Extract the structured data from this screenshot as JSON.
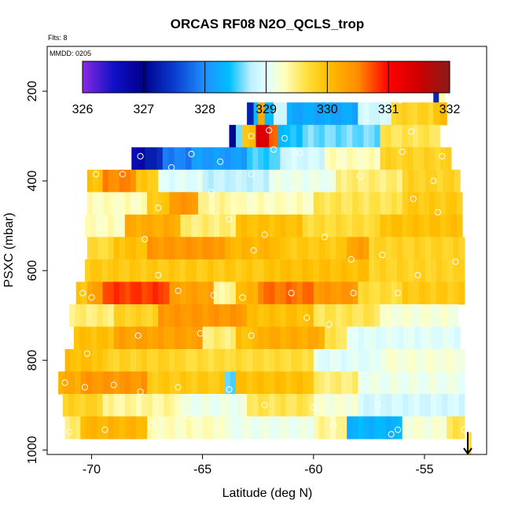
{
  "chart_data": {
    "type": "heatmap",
    "title": "ORCAS RF08 N2O_QCLS_trop",
    "subtitle": "Flts: 8",
    "inset_label": "MMDD: 0205",
    "xlabel": "Latitude (deg N)",
    "ylabel": "PSXC (mbar)",
    "xlim": [
      -72.0,
      -52.2
    ],
    "ylim": [
      1010,
      100
    ],
    "x_ticks": [
      -70,
      -65,
      -60,
      -55
    ],
    "x_tick_labels": [
      "-70",
      "-65",
      "-60",
      "-55"
    ],
    "y_ticks": [
      200,
      400,
      600,
      800,
      1000
    ],
    "y_tick_labels": [
      "200",
      "400",
      "600",
      "800",
      "1000"
    ],
    "colorbar": {
      "min": 326,
      "max": 332,
      "ticks": [
        326,
        327,
        328,
        329,
        330,
        331,
        332
      ],
      "tick_labels": [
        "326",
        "327",
        "328",
        "329",
        "330",
        "331",
        "332"
      ],
      "stops": [
        {
          "v": 326.0,
          "c": "#8a2be2"
        },
        {
          "v": 326.5,
          "c": "#1010c8"
        },
        {
          "v": 327.0,
          "c": "#00008b"
        },
        {
          "v": 327.5,
          "c": "#0a3cd0"
        },
        {
          "v": 328.0,
          "c": "#1e90ff"
        },
        {
          "v": 328.4,
          "c": "#00bfff"
        },
        {
          "v": 328.75,
          "c": "#bfefff"
        },
        {
          "v": 329.0,
          "c": "#e0ffff"
        },
        {
          "v": 329.3,
          "c": "#ffffc0"
        },
        {
          "v": 329.65,
          "c": "#ffe040"
        },
        {
          "v": 330.0,
          "c": "#ffc000"
        },
        {
          "v": 330.5,
          "c": "#ff8c00"
        },
        {
          "v": 331.0,
          "c": "#ff0000"
        },
        {
          "v": 331.5,
          "c": "#cd0000"
        },
        {
          "v": 332.0,
          "c": "#8b1a1a"
        }
      ]
    },
    "rows": [
      {
        "p": 200,
        "segments": [
          [
            -54.6,
            -54.35,
            327.3
          ],
          [
            -54.35,
            -54.1,
            329.3
          ]
        ]
      },
      {
        "p": 250,
        "segments": [
          [
            -63.0,
            -62.7,
            327.2
          ],
          [
            -62.7,
            -62.5,
            328.4
          ],
          [
            -62.5,
            -62.2,
            330.3
          ],
          [
            -62.2,
            -61.8,
            328.3
          ],
          [
            -61.8,
            -61.2,
            328.9
          ],
          [
            -61.2,
            -58.0,
            328.2
          ],
          [
            -58.0,
            -56.5,
            328.9
          ],
          [
            -56.5,
            -54.6,
            329.8
          ],
          [
            -54.6,
            -54.0,
            330.0
          ]
        ]
      },
      {
        "p": 300,
        "segments": [
          [
            -63.8,
            -63.5,
            327.0
          ],
          [
            -63.5,
            -63.2,
            328.6
          ],
          [
            -63.2,
            -62.6,
            330.0
          ],
          [
            -62.6,
            -62.0,
            331.4
          ],
          [
            -62.0,
            -61.6,
            330.6
          ],
          [
            -61.6,
            -60.5,
            328.4
          ],
          [
            -60.5,
            -57.0,
            328.6
          ],
          [
            -57.0,
            -54.3,
            329.6
          ]
        ]
      },
      {
        "p": 350,
        "segments": [
          [
            -68.2,
            -67.6,
            326.7
          ],
          [
            -67.6,
            -66.8,
            327.3
          ],
          [
            -66.8,
            -65.5,
            327.9
          ],
          [
            -65.5,
            -63.0,
            328.1
          ],
          [
            -63.0,
            -61.5,
            328.5
          ],
          [
            -61.5,
            -59.5,
            328.9
          ],
          [
            -59.5,
            -57.0,
            329.3
          ],
          [
            -57.0,
            -53.8,
            329.8
          ]
        ]
      },
      {
        "p": 400,
        "segments": [
          [
            -70.2,
            -69.5,
            330.0
          ],
          [
            -69.5,
            -68.0,
            330.5
          ],
          [
            -68.0,
            -67.0,
            329.9
          ],
          [
            -67.0,
            -65.0,
            329.0
          ],
          [
            -65.0,
            -62.0,
            328.8
          ],
          [
            -62.0,
            -59.0,
            329.1
          ],
          [
            -59.0,
            -56.0,
            329.5
          ],
          [
            -56.0,
            -53.4,
            329.8
          ]
        ]
      },
      {
        "p": 450,
        "segments": [
          [
            -70.2,
            -67.5,
            329.3
          ],
          [
            -67.5,
            -66.5,
            329.9
          ],
          [
            -66.5,
            -65.2,
            330.4
          ],
          [
            -65.2,
            -63.5,
            329.4
          ],
          [
            -63.5,
            -60.0,
            329.3
          ],
          [
            -60.0,
            -56.0,
            329.6
          ],
          [
            -56.0,
            -53.3,
            329.9
          ]
        ]
      },
      {
        "p": 500,
        "segments": [
          [
            -70.3,
            -68.5,
            329.3
          ],
          [
            -68.5,
            -66.0,
            330.2
          ],
          [
            -66.0,
            -63.5,
            329.5
          ],
          [
            -63.5,
            -60.5,
            330.0
          ],
          [
            -60.5,
            -57.0,
            329.7
          ],
          [
            -57.0,
            -53.3,
            330.0
          ]
        ]
      },
      {
        "p": 550,
        "segments": [
          [
            -70.2,
            -69.0,
            329.7
          ],
          [
            -69.0,
            -67.5,
            330.0
          ],
          [
            -67.5,
            -64.0,
            330.4
          ],
          [
            -64.0,
            -61.5,
            330.1
          ],
          [
            -61.5,
            -58.5,
            329.9
          ],
          [
            -58.5,
            -57.5,
            330.3
          ],
          [
            -57.5,
            -53.2,
            329.8
          ]
        ]
      },
      {
        "p": 600,
        "segments": [
          [
            -70.3,
            -62.0,
            329.9
          ],
          [
            -62.0,
            -57.5,
            330.0
          ],
          [
            -57.5,
            -53.2,
            329.8
          ]
        ]
      },
      {
        "p": 650,
        "segments": [
          [
            -70.7,
            -70.2,
            329.9
          ],
          [
            -70.2,
            -69.5,
            330.3
          ],
          [
            -69.5,
            -66.5,
            330.8
          ],
          [
            -66.5,
            -64.5,
            330.3
          ],
          [
            -64.5,
            -63.5,
            329.4
          ],
          [
            -63.5,
            -62.5,
            330.1
          ],
          [
            -62.5,
            -60.0,
            330.6
          ],
          [
            -60.0,
            -58.0,
            330.4
          ],
          [
            -58.0,
            -56.0,
            329.7
          ],
          [
            -56.0,
            -53.2,
            329.9
          ]
        ]
      },
      {
        "p": 700,
        "segments": [
          [
            -71.0,
            -69.0,
            329.5
          ],
          [
            -69.0,
            -67.0,
            329.8
          ],
          [
            -67.0,
            -63.0,
            330.4
          ],
          [
            -63.0,
            -60.0,
            330.0
          ],
          [
            -60.0,
            -57.0,
            329.6
          ],
          [
            -57.0,
            -53.5,
            329.2
          ]
        ]
      },
      {
        "p": 750,
        "segments": [
          [
            -70.8,
            -69.0,
            330.0
          ],
          [
            -69.0,
            -65.0,
            330.3
          ],
          [
            -65.0,
            -63.5,
            329.5
          ],
          [
            -63.5,
            -62.5,
            330.0
          ],
          [
            -62.5,
            -59.5,
            330.2
          ],
          [
            -59.5,
            -58.5,
            329.6
          ],
          [
            -58.5,
            -53.4,
            329.0
          ]
        ]
      },
      {
        "p": 800,
        "segments": [
          [
            -71.2,
            -69.5,
            330.0
          ],
          [
            -69.5,
            -66.0,
            329.8
          ],
          [
            -66.0,
            -60.0,
            329.7
          ],
          [
            -60.0,
            -57.0,
            329.0
          ],
          [
            -57.0,
            -53.2,
            329.2
          ]
        ]
      },
      {
        "p": 850,
        "segments": [
          [
            -71.5,
            -70.5,
            330.2
          ],
          [
            -70.5,
            -67.5,
            330.4
          ],
          [
            -67.5,
            -64.0,
            329.9
          ],
          [
            -64.0,
            -63.5,
            328.6
          ],
          [
            -63.5,
            -60.0,
            330.0
          ],
          [
            -60.0,
            -58.0,
            329.5
          ],
          [
            -58.0,
            -53.2,
            329.1
          ]
        ]
      },
      {
        "p": 900,
        "segments": [
          [
            -71.3,
            -69.5,
            329.8
          ],
          [
            -69.5,
            -66.0,
            329.4
          ],
          [
            -66.0,
            -63.0,
            329.1
          ],
          [
            -63.0,
            -60.0,
            329.6
          ],
          [
            -60.0,
            -58.0,
            329.2
          ],
          [
            -58.0,
            -53.2,
            328.9
          ]
        ]
      },
      {
        "p": 950,
        "segments": [
          [
            -71.2,
            -70.5,
            329.5
          ],
          [
            -70.5,
            -67.5,
            330.1
          ],
          [
            -67.5,
            -64.0,
            329.3
          ],
          [
            -64.0,
            -60.0,
            329.1
          ],
          [
            -60.0,
            -58.5,
            329.4
          ],
          [
            -58.5,
            -56.0,
            328.3
          ],
          [
            -56.0,
            -54.0,
            329.2
          ],
          [
            -54.0,
            -53.2,
            329.6
          ]
        ]
      },
      {
        "p": 985,
        "segments": [
          [
            -53.1,
            -52.9,
            329.7
          ]
        ]
      }
    ],
    "sample_points": [
      [
        -59.9,
        215
      ],
      [
        -56.1,
        220
      ],
      [
        -62.0,
        287
      ],
      [
        -61.3,
        305
      ],
      [
        -62.8,
        300
      ],
      [
        -55.6,
        290
      ],
      [
        -61.8,
        330
      ],
      [
        -60.6,
        338
      ],
      [
        -67.8,
        345
      ],
      [
        -65.5,
        340
      ],
      [
        -64.2,
        357
      ],
      [
        -56.0,
        335
      ],
      [
        -54.2,
        345
      ],
      [
        -66.4,
        370
      ],
      [
        -69.8,
        385
      ],
      [
        -68.6,
        385
      ],
      [
        -62.8,
        385
      ],
      [
        -57.9,
        390
      ],
      [
        -54.6,
        400
      ],
      [
        -64.6,
        425
      ],
      [
        -60.9,
        420
      ],
      [
        -55.5,
        440
      ],
      [
        -67.0,
        460
      ],
      [
        -63.8,
        485
      ],
      [
        -54.4,
        470
      ],
      [
        -67.6,
        530
      ],
      [
        -62.2,
        520
      ],
      [
        -59.5,
        525
      ],
      [
        -56.9,
        565
      ],
      [
        -62.7,
        555
      ],
      [
        -55.3,
        610
      ],
      [
        -67.0,
        610
      ],
      [
        -58.3,
        575
      ],
      [
        -53.6,
        580
      ],
      [
        -70.4,
        650
      ],
      [
        -70.0,
        660
      ],
      [
        -66.1,
        645
      ],
      [
        -64.5,
        655
      ],
      [
        -63.2,
        660
      ],
      [
        -61.0,
        650
      ],
      [
        -58.2,
        650
      ],
      [
        -56.2,
        650
      ],
      [
        -60.3,
        705
      ],
      [
        -59.3,
        720
      ],
      [
        -67.9,
        745
      ],
      [
        -65.1,
        740
      ],
      [
        -62.8,
        745
      ],
      [
        -58.1,
        745
      ],
      [
        -70.2,
        785
      ],
      [
        -71.2,
        850
      ],
      [
        -70.3,
        860
      ],
      [
        -69.0,
        855
      ],
      [
        -67.8,
        870
      ],
      [
        -66.1,
        860
      ],
      [
        -63.8,
        865
      ],
      [
        -62.2,
        900
      ],
      [
        -60.0,
        905
      ],
      [
        -57.1,
        900
      ],
      [
        -59.1,
        945
      ],
      [
        -56.5,
        965
      ],
      [
        -56.2,
        955
      ],
      [
        -65.6,
        925
      ],
      [
        -67.3,
        945
      ],
      [
        -69.4,
        955
      ],
      [
        -71.0,
        960
      ],
      [
        -65.8,
        975
      ],
      [
        -61.0,
        980
      ],
      [
        -63.0,
        1000
      ],
      [
        -55.2,
        1000
      ],
      [
        -53.2,
        955
      ]
    ],
    "arrow": {
      "x": -53.05,
      "p_top": 960,
      "p_bottom": 1010
    }
  }
}
